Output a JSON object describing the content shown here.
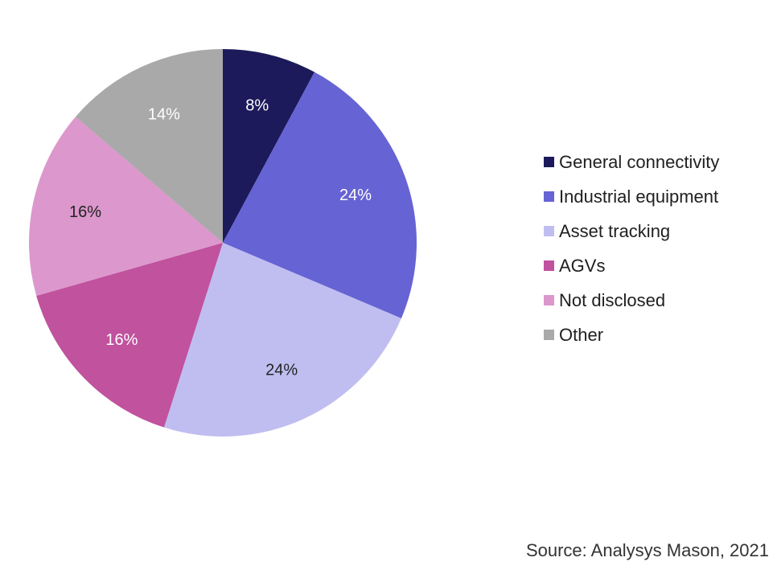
{
  "chart_data": {
    "type": "pie",
    "title": "",
    "slices": [
      {
        "label": "General connectivity",
        "value": 8,
        "display": "8%",
        "color": "#1c1a5a",
        "label_color": "#ffffff"
      },
      {
        "label": "Industrial equipment",
        "value": 24,
        "display": "24%",
        "color": "#6663d4",
        "label_color": "#ffffff"
      },
      {
        "label": "Asset tracking",
        "value": 24,
        "display": "24%",
        "color": "#c0bef0",
        "label_color": "#222222"
      },
      {
        "label": "AGVs",
        "value": 16,
        "display": "16%",
        "color": "#c0529e",
        "label_color": "#ffffff"
      },
      {
        "label": "Not disclosed",
        "value": 16,
        "display": "16%",
        "color": "#dc97cc",
        "label_color": "#222222"
      },
      {
        "label": "Other",
        "value": 14,
        "display": "14%",
        "color": "#a9a9a9",
        "label_color": "#ffffff"
      }
    ],
    "start_angle": "12 o'clock",
    "direction": "clockwise",
    "legend_placement": "right"
  },
  "source": "Source: Analysys Mason, 2021"
}
